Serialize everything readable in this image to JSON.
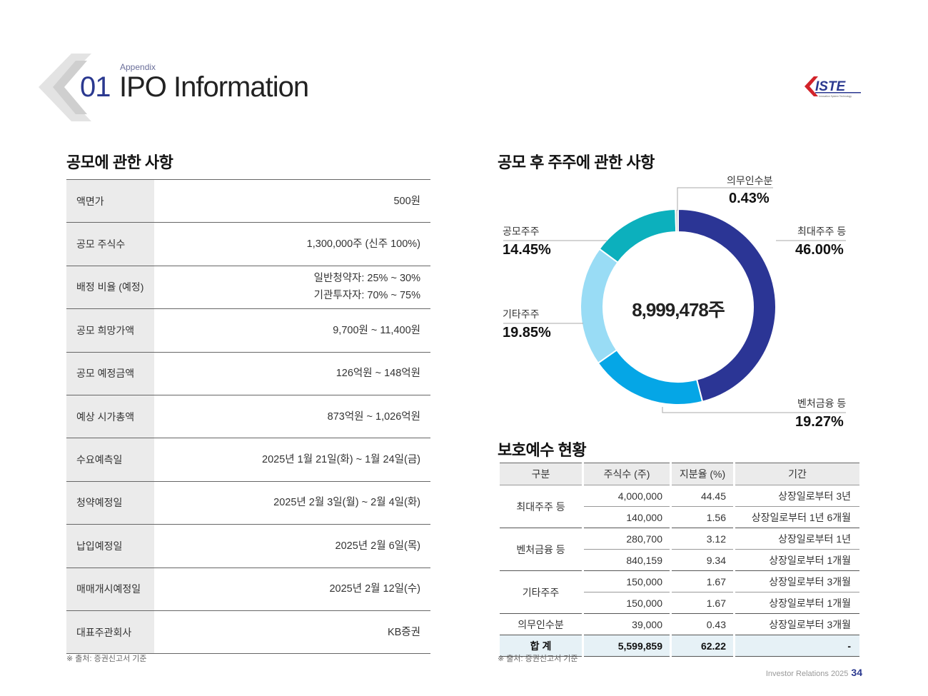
{
  "header": {
    "appendix": "Appendix",
    "section_number": "01",
    "section_title": "IPO Information",
    "logo_text": "ISTE",
    "logo_subtext": "Innovation System Technology"
  },
  "offering": {
    "title": "공모에 관한 사항",
    "rows": [
      {
        "label": "액면가",
        "value": "500원"
      },
      {
        "label": "공모 주식수",
        "value": "1,300,000주 (신주 100%)"
      },
      {
        "label": "배정 비율 (예정)",
        "value": [
          "일반청약자: 25% ~ 30%",
          "기관투자자: 70% ~ 75%"
        ]
      },
      {
        "label": "공모 희망가액",
        "value": "9,700원 ~ 11,400원"
      },
      {
        "label": "공모 예정금액",
        "value": "126억원 ~ 148억원"
      },
      {
        "label": "예상 시가총액",
        "value": "873억원 ~ 1,026억원"
      },
      {
        "label": "수요예측일",
        "value": "2025년 1월 21일(화) ~ 1월 24일(금)"
      },
      {
        "label": "청약예정일",
        "value": "2025년 2월 3일(월) ~ 2월 4일(화)"
      },
      {
        "label": "납입예정일",
        "value": "2025년 2월 6일(목)"
      },
      {
        "label": "매매개시예정일",
        "value": "2025년 2월 12일(수)"
      },
      {
        "label": "대표주관회사",
        "value": "KB증권"
      }
    ],
    "note": "※ 출처: 증권신고서 기준"
  },
  "shareholders": {
    "title": "공모 후 주주에 관한 사항",
    "total": "8,999,478주",
    "slices": [
      {
        "name": "최대주주 등",
        "pct": "46.00%",
        "value": 46.0,
        "color": "#2b3595"
      },
      {
        "name": "벤처금융 등",
        "pct": "19.27%",
        "value": 19.27,
        "color": "#05a6e6"
      },
      {
        "name": "기타주주",
        "pct": "19.85%",
        "value": 19.85,
        "color": "#99dcf5"
      },
      {
        "name": "공모주주",
        "pct": "14.45%",
        "value": 14.45,
        "color": "#0cb0bd"
      },
      {
        "name": "의무인수분",
        "pct": "0.43%",
        "value": 0.43,
        "color": "#c8c8c8"
      }
    ]
  },
  "lockup": {
    "title": "보호예수 현황",
    "headers": [
      "구분",
      "주식수 (주)",
      "지분율 (%)",
      "기간"
    ],
    "groups": [
      {
        "name": "최대주주 등",
        "rows": [
          [
            "4,000,000",
            "44.45",
            "상장일로부터 3년"
          ],
          [
            "140,000",
            "1.56",
            "상장일로부터 1년 6개월"
          ]
        ]
      },
      {
        "name": "벤처금융 등",
        "rows": [
          [
            "280,700",
            "3.12",
            "상장일로부터 1년"
          ],
          [
            "840,159",
            "9.34",
            "상장일로부터 1개월"
          ]
        ]
      },
      {
        "name": "기타주주",
        "rows": [
          [
            "150,000",
            "1.67",
            "상장일로부터 3개월"
          ],
          [
            "150,000",
            "1.67",
            "상장일로부터 1개월"
          ]
        ]
      },
      {
        "name": "의무인수분",
        "rows": [
          [
            "39,000",
            "0.43",
            "상장일로부터 3개월"
          ]
        ]
      }
    ],
    "total": {
      "label": "합 계",
      "shares": "5,599,859",
      "pct": "62.22",
      "period": "-"
    },
    "note": "※ 출처: 증권신고서 기준"
  },
  "footer": {
    "text": "Investor Relations 2025",
    "page": "34"
  },
  "chart_data": {
    "type": "pie",
    "title": "공모 후 주주에 관한 사항",
    "categories": [
      "최대주주 등",
      "벤처금융 등",
      "기타주주",
      "공모주주",
      "의무인수분"
    ],
    "values": [
      46.0,
      19.27,
      19.85,
      14.45,
      0.43
    ],
    "center_label": "8,999,478주"
  }
}
